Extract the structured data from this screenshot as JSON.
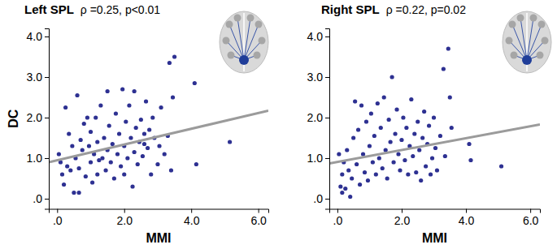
{
  "chart_data": [
    {
      "type": "scatter",
      "title": "Left SPL",
      "subtitle": "ρ =0.25, p<0.01",
      "x_label": "MMI",
      "y_label": "DC",
      "xlim": [
        -0.25,
        6.3
      ],
      "ylim": [
        -0.25,
        4.2
      ],
      "xticks": [
        {
          "value": 0,
          "label": ".0"
        },
        {
          "value": 2,
          "label": "2.0"
        },
        {
          "value": 4,
          "label": "4.0"
        },
        {
          "value": 6,
          "label": "6.0"
        }
      ],
      "yticks": [
        {
          "value": 0,
          "label": ".0"
        },
        {
          "value": 1,
          "label": "1.0"
        },
        {
          "value": 2,
          "label": "2.0"
        },
        {
          "value": 3,
          "label": "3.0"
        },
        {
          "value": 4,
          "label": "4.0"
        }
      ],
      "series": [
        {
          "type": "scatter",
          "color": "#2e3192",
          "marker": "circle",
          "x": [
            0.05,
            0.1,
            0.15,
            0.2,
            0.25,
            0.3,
            0.35,
            0.4,
            0.45,
            0.5,
            0.55,
            0.6,
            0.65,
            0.65,
            0.7,
            0.75,
            0.8,
            0.85,
            0.9,
            0.95,
            1.0,
            1.0,
            1.05,
            1.1,
            1.15,
            1.2,
            1.2,
            1.25,
            1.3,
            1.35,
            1.4,
            1.45,
            1.5,
            1.5,
            1.55,
            1.6,
            1.65,
            1.7,
            1.75,
            1.8,
            1.85,
            1.9,
            1.95,
            2.0,
            2.0,
            2.05,
            2.1,
            2.15,
            2.2,
            2.25,
            2.3,
            2.3,
            2.35,
            2.4,
            2.45,
            2.5,
            2.55,
            2.6,
            2.6,
            2.65,
            2.7,
            2.75,
            2.8,
            2.85,
            2.9,
            3.0,
            3.05,
            3.1,
            3.2,
            3.3,
            3.35,
            3.4,
            3.45,
            3.5,
            4.1,
            4.15,
            5.15
          ],
          "values": [
            1.1,
            0.9,
            0.6,
            0.35,
            2.25,
            0.8,
            1.6,
            0.7,
            1.3,
            0.15,
            1.0,
            2.55,
            0.75,
            0.15,
            1.45,
            1.2,
            1.85,
            0.55,
            2.0,
            1.3,
            0.9,
            1.65,
            0.4,
            1.1,
            2.0,
            0.6,
            1.4,
            0.95,
            2.3,
            1.0,
            1.5,
            0.7,
            2.65,
            1.2,
            1.8,
            0.9,
            1.35,
            0.5,
            2.1,
            1.1,
            1.6,
            0.8,
            2.7,
            1.3,
            0.6,
            1.9,
            1.0,
            2.3,
            1.5,
            0.3,
            2.65,
            1.15,
            1.75,
            0.85,
            1.4,
            1.95,
            1.05,
            1.6,
            1.35,
            2.4,
            1.25,
            1.7,
            0.6,
            2.0,
            1.5,
            0.85,
            1.3,
            2.25,
            1.1,
            1.55,
            3.35,
            0.7,
            2.5,
            3.5,
            2.85,
            0.85,
            1.4
          ]
        },
        {
          "type": "line",
          "color": "#9b9b9b",
          "line_style": "solid",
          "x": [
            -0.25,
            6.3
          ],
          "values": [
            0.9,
            2.17
          ]
        }
      ]
    },
    {
      "type": "scatter",
      "title": "Right SPL",
      "subtitle": "ρ =0.22, p=0.02",
      "x_label": "MMI",
      "xlim": [
        -0.25,
        6.3
      ],
      "ylim": [
        -0.25,
        4.2
      ],
      "xticks": [
        {
          "value": 0,
          "label": ".0"
        },
        {
          "value": 2,
          "label": "2.0"
        },
        {
          "value": 4,
          "label": "4.0"
        },
        {
          "value": 6,
          "label": "6.0"
        }
      ],
      "yticks": [
        {
          "value": 0,
          "label": ".0"
        },
        {
          "value": 1,
          "label": "1.0"
        },
        {
          "value": 2,
          "label": "2.0"
        },
        {
          "value": 3,
          "label": "3.0"
        },
        {
          "value": 4,
          "label": "4.0"
        }
      ],
      "series": [
        {
          "type": "scatter",
          "color": "#2e3192",
          "marker": "circle",
          "x": [
            0.05,
            0.1,
            0.15,
            0.15,
            0.2,
            0.25,
            0.3,
            0.35,
            0.4,
            0.45,
            0.5,
            0.55,
            0.6,
            0.65,
            0.7,
            0.75,
            0.8,
            0.85,
            0.9,
            0.95,
            1.0,
            1.05,
            1.1,
            1.15,
            1.2,
            1.25,
            1.3,
            1.35,
            1.4,
            1.45,
            1.5,
            1.55,
            1.6,
            1.65,
            1.7,
            1.75,
            1.8,
            1.85,
            1.9,
            1.95,
            2.0,
            2.05,
            2.1,
            2.15,
            2.2,
            2.25,
            2.3,
            2.35,
            2.4,
            2.45,
            2.5,
            2.55,
            2.6,
            2.65,
            2.7,
            2.75,
            2.8,
            2.85,
            2.9,
            2.95,
            3.0,
            3.05,
            3.1,
            3.2,
            3.3,
            3.35,
            3.45,
            3.5,
            3.55,
            4.1,
            4.15,
            5.1
          ],
          "values": [
            1.1,
            0.3,
            0.6,
            0.15,
            0.9,
            0.25,
            1.2,
            0.7,
            0.05,
            0.5,
            1.5,
            2.4,
            0.85,
            1.7,
            0.35,
            2.3,
            1.1,
            0.65,
            1.9,
            0.45,
            1.3,
            2.1,
            0.9,
            1.55,
            0.6,
            2.35,
            1.0,
            1.75,
            0.75,
            2.5,
            1.2,
            0.5,
            1.95,
            1.4,
            3.0,
            0.9,
            1.6,
            2.2,
            1.1,
            0.7,
            1.45,
            2.0,
            0.95,
            1.75,
            0.6,
            1.3,
            2.45,
            1.05,
            1.6,
            0.65,
            1.9,
            1.2,
            0.45,
            1.5,
            2.15,
            0.8,
            1.35,
            1.8,
            0.6,
            1.0,
            2.0,
            1.25,
            0.7,
            1.55,
            3.2,
            1.05,
            3.7,
            2.5,
            1.75,
            1.35,
            0.95,
            0.8
          ]
        },
        {
          "type": "line",
          "color": "#9b9b9b",
          "line_style": "solid",
          "x": [
            -0.25,
            6.3
          ],
          "values": [
            0.87,
            1.83
          ]
        }
      ]
    }
  ]
}
